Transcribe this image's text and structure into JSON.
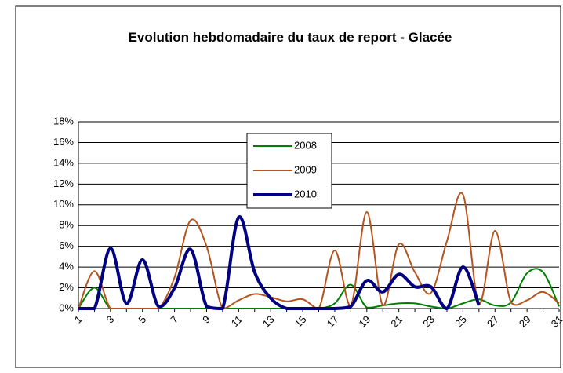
{
  "chart_data": {
    "type": "line",
    "title": "Evolution hebdomadaire du taux de report - Glacée",
    "categories": [
      "1",
      null,
      "3",
      null,
      "5",
      null,
      "7",
      null,
      "9",
      null,
      "11",
      null,
      "13",
      null,
      "15",
      null,
      "17",
      null,
      "19",
      null,
      "21",
      null,
      "23",
      null,
      "25",
      null,
      "27",
      null,
      "29",
      null,
      "31"
    ],
    "series": [
      {
        "name": "2008",
        "color": "#008000",
        "width": 2,
        "values": [
          0,
          2.0,
          0,
          0,
          0,
          0,
          0,
          0,
          0,
          0,
          0,
          0,
          0,
          0,
          0,
          0,
          0.5,
          2.3,
          0.1,
          0.3,
          0.5,
          0.5,
          0.2,
          0,
          0.5,
          0.9,
          0.3,
          0.6,
          3.4,
          3.5,
          0.2
        ]
      },
      {
        "name": "2009",
        "color": "#b5541e",
        "width": 2,
        "values": [
          0,
          3.6,
          0,
          0,
          0,
          0,
          3.0,
          8.5,
          6.0,
          0,
          0.8,
          1.4,
          1.1,
          0.7,
          0.9,
          0,
          5.6,
          0.3,
          9.3,
          0.3,
          6.2,
          3.5,
          1.5,
          6.5,
          11.0,
          0.5,
          7.5,
          0.6,
          0.8,
          1.6,
          0.5
        ]
      },
      {
        "name": "2010",
        "color": "#000080",
        "width": 4,
        "values": [
          0,
          0,
          5.8,
          0.5,
          4.7,
          0.2,
          2.0,
          5.7,
          0.2,
          0,
          8.8,
          3.5,
          1.0,
          0,
          0,
          0,
          0,
          0.2,
          2.7,
          1.6,
          3.3,
          2.1,
          2.1,
          0,
          4.0,
          0.3,
          null,
          null,
          null,
          null,
          null
        ]
      }
    ],
    "ylim": [
      0,
      18
    ],
    "yticks": [
      {
        "value": 0,
        "label": "0%"
      },
      {
        "value": 2,
        "label": "2%"
      },
      {
        "value": 4,
        "label": "4%"
      },
      {
        "value": 6,
        "label": "6%"
      },
      {
        "value": 8,
        "label": "8%"
      },
      {
        "value": 10,
        "label": "10%"
      },
      {
        "value": 12,
        "label": "12%"
      },
      {
        "value": 14,
        "label": "14%"
      },
      {
        "value": 16,
        "label": "16%"
      },
      {
        "value": 18,
        "label": "18%"
      }
    ],
    "grid": true,
    "legend": "inside"
  }
}
